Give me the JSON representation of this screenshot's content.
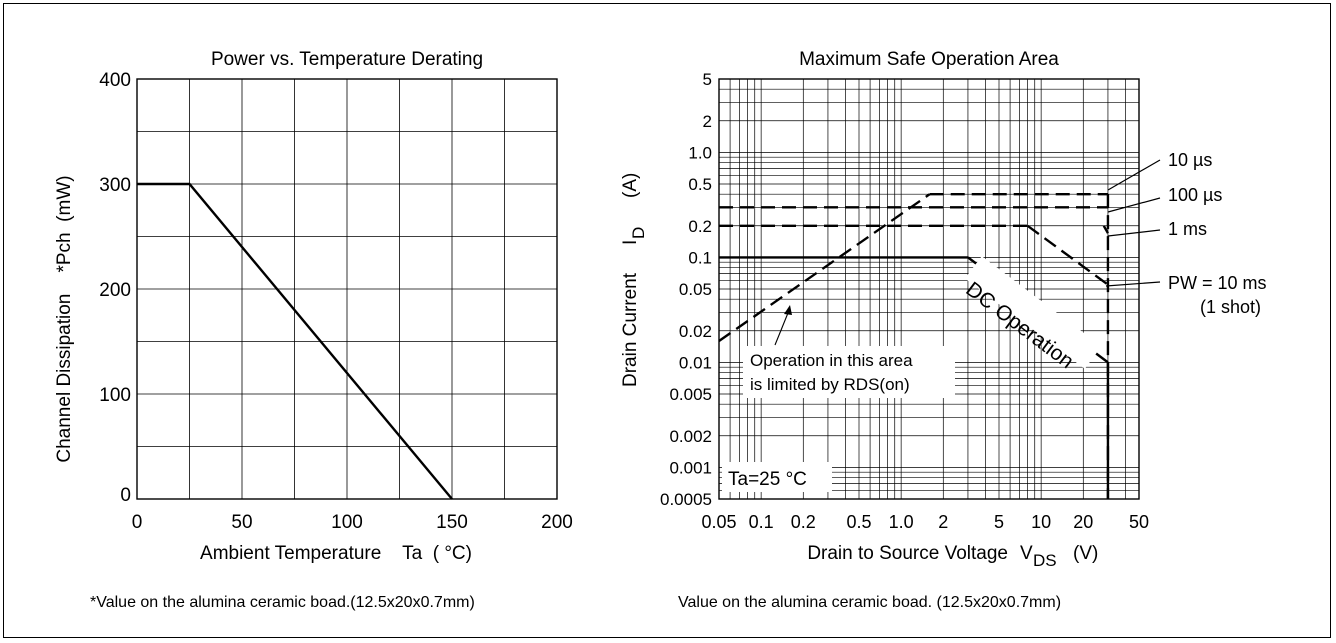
{
  "chart_data": [
    {
      "type": "line",
      "title": "Power vs. Temperature Derating",
      "xlabel": "Ambient Temperature    Ta  ( °C)",
      "ylabel": "Channel Dissipation    *Pch  (mW)",
      "xlim": [
        0,
        200
      ],
      "ylim": [
        0,
        400
      ],
      "x_ticks": [
        "0",
        "50",
        "100",
        "150",
        "200"
      ],
      "y_ticks": [
        "0",
        "100",
        "200",
        "300",
        "400"
      ],
      "grid": true,
      "series": [
        {
          "x": [
            0,
            25,
            150
          ],
          "y": [
            300,
            300,
            0
          ]
        }
      ],
      "footnote": "*Value on the alumina ceramic boad.(12.5x20x0.7mm)"
    },
    {
      "type": "line",
      "title": "Maximum Safe Operation Area",
      "xlabel": "Drain to Source Voltage",
      "xlabel_symbol": "V",
      "xlabel_sub": "DS",
      "xlabel_unit": "(V)",
      "ylabel": "Drain Current",
      "ylabel_symbol": "I",
      "ylabel_sub": "D",
      "ylabel_unit": "(A)",
      "x_scale": "log",
      "y_scale": "log",
      "xlim": [
        0.05,
        50
      ],
      "ylim": [
        0.0005,
        5
      ],
      "x_ticks": [
        "0.05",
        "0.1",
        "0.2",
        "0.5",
        "1.0",
        "2",
        "5",
        "10",
        "20",
        "50"
      ],
      "y_ticks": [
        "0.0005",
        "0.001",
        "0.002",
        "0.005",
        "0.01",
        "0.02",
        "0.05",
        "0.1",
        "0.2",
        "0.5",
        "1.0",
        "2",
        "5"
      ],
      "grid": true,
      "series": [
        {
          "x": [
            0.05,
            1.6
          ],
          "y": [
            0.016,
            0.4
          ],
          "style": "dashed"
        },
        {
          "x": [
            1.6,
            30
          ],
          "y": [
            0.4,
            0.4
          ],
          "style": "dashed"
        },
        {
          "x": [
            0.05,
            30
          ],
          "y": [
            0.3,
            0.3
          ],
          "style": "dashed"
        },
        {
          "x": [
            0.05,
            8
          ],
          "y": [
            0.2,
            0.2
          ],
          "style": "dashed"
        },
        {
          "x": [
            8,
            30
          ],
          "y": [
            0.2,
            0.055
          ],
          "style": "dashed"
        },
        {
          "x": [
            30,
            30
          ],
          "y": [
            0.4,
            0.0005
          ],
          "style": "dashed"
        },
        {
          "x": [
            0.05,
            3
          ],
          "y": [
            0.1,
            0.1
          ],
          "style": "solid"
        },
        {
          "x": [
            3,
            30
          ],
          "y": [
            0.1,
            0.01
          ],
          "style": "solid"
        },
        {
          "x": [
            28,
            30
          ],
          "y": [
            0.2,
            0.17
          ],
          "style": "solid"
        },
        {
          "x": [
            30,
            30
          ],
          "y": [
            0.01,
            0.0005
          ],
          "style": "solid"
        }
      ],
      "annotations": {
        "pulse_labels": [
          "10 µs",
          "100 µs",
          "1 ms",
          "PW = 10 ms",
          "(1 shot)"
        ],
        "dc_label": "DC Operation",
        "rds_note": [
          "Operation in this area",
          "is limited by RDS(on)"
        ],
        "ta_label": "Ta=25 °C"
      },
      "footnote": "Value on the alumina ceramic boad. (12.5x20x0.7mm)"
    }
  ]
}
